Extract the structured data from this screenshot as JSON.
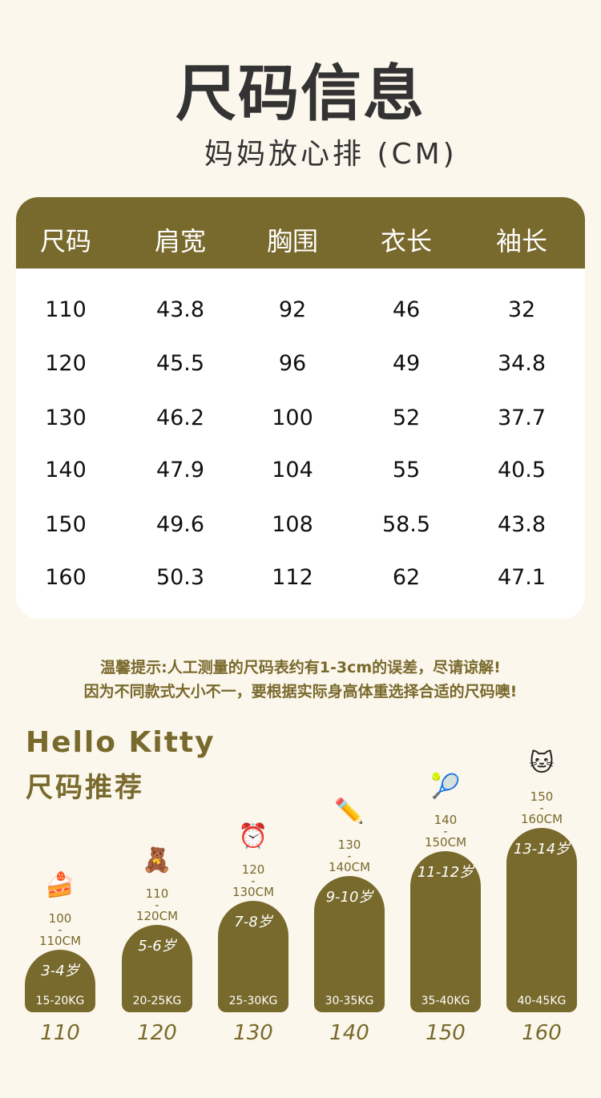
{
  "title": "尺码信息",
  "subtitle": "妈妈放心排 (CM)",
  "table": {
    "headers": [
      "尺码",
      "肩宽",
      "胸围",
      "衣长",
      "袖长"
    ],
    "rows": [
      [
        "110",
        "43.8",
        "92",
        "46",
        "32"
      ],
      [
        "120",
        "45.5",
        "96",
        "49",
        "34.8"
      ],
      [
        "130",
        "46.2",
        "100",
        "52",
        "37.7"
      ],
      [
        "140",
        "47.9",
        "104",
        "55",
        "40.5"
      ],
      [
        "150",
        "49.6",
        "108",
        "58.5",
        "43.8"
      ],
      [
        "160",
        "50.3",
        "112",
        "62",
        "47.1"
      ]
    ]
  },
  "tips": [
    "温馨提示:人工测量的尺码表约有1-3cm的误差，尽请谅解!",
    "因为不同款式大小不一，要根据实际身高体重选择合适的尺码噢!"
  ],
  "recommend": {
    "brand": "Hello Kitty",
    "heading": "尺码推荐",
    "items": [
      {
        "size": "110",
        "height_from": "100",
        "dash": "-",
        "height_to": "110CM",
        "age": "3-4岁",
        "weight": "15-20KG",
        "icon": "cake-icon"
      },
      {
        "size": "120",
        "height_from": "110",
        "dash": "-",
        "height_to": "120CM",
        "age": "5-6岁",
        "weight": "20-25KG",
        "icon": "teddy-bear-icon"
      },
      {
        "size": "130",
        "height_from": "120",
        "dash": "-",
        "height_to": "130CM",
        "age": "7-8岁",
        "weight": "25-30KG",
        "icon": "alarm-clock-icon"
      },
      {
        "size": "140",
        "height_from": "130",
        "dash": "-",
        "height_to": "140CM",
        "age": "9-10岁",
        "weight": "30-35KG",
        "icon": "pencils-icon"
      },
      {
        "size": "150",
        "height_from": "140",
        "dash": "-",
        "height_to": "150CM",
        "age": "11-12岁",
        "weight": "35-40KG",
        "icon": "tennis-racket-icon"
      },
      {
        "size": "160",
        "height_from": "150",
        "dash": "-",
        "height_to": "160CM",
        "age": "13-14岁",
        "weight": "40-45KG",
        "icon": "hello-kitty-icon"
      }
    ]
  },
  "colors": {
    "accent": "#78692c",
    "background": "#fcf7ec"
  }
}
